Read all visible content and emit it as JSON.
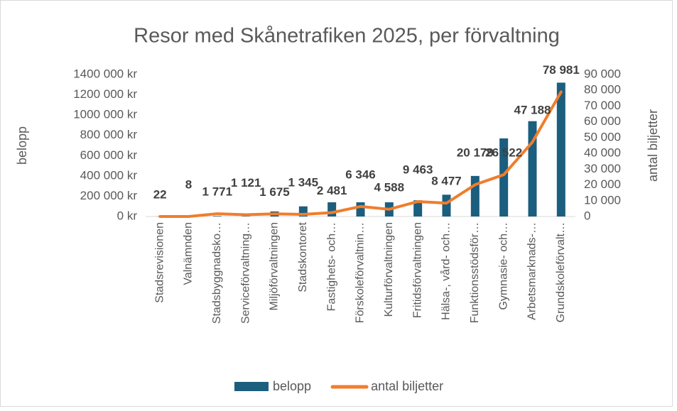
{
  "chart_data": {
    "type": "bar-line",
    "title": "Resor med Skånetrafiken 2025, per förvaltning",
    "y_label": "belopp",
    "y2_label": "antal biljetter",
    "categories": [
      "Stadsrevisionen",
      "Valnämnden",
      "Stadsbyggnadsko…",
      "Serviceförvaltning…",
      "Miljöförvaltningen",
      "Stadskontoret",
      "Fastighets- och…",
      "Förskoleförvaltnin…",
      "Kulturförvaltningen",
      "Fritidsförvaltningen",
      "Hälsa-, vård- och…",
      "Funktionsstödsför…",
      "Gymnasie- och…",
      "Arbetsmarknads-…",
      "Grundskoleförvalt…"
    ],
    "series": [
      {
        "name": "belopp",
        "color": "#1b5e7e",
        "kind": "bar",
        "values": [
          1000,
          500,
          5000,
          3000,
          50000,
          100000,
          140000,
          140000,
          140000,
          160000,
          215000,
          400000,
          770000,
          940000,
          1320000
        ]
      },
      {
        "name": "antal biljetter",
        "color": "#f07d2c",
        "kind": "line",
        "axis": "y2",
        "values": [
          22,
          8,
          1771,
          1121,
          1675,
          1345,
          2481,
          6346,
          4588,
          9463,
          8477,
          20179,
          26522,
          47188,
          78981
        ],
        "value_labels": [
          "22",
          "8",
          "1 771",
          "1 121",
          "1 675",
          "1 345",
          "2 481",
          "6 346",
          "4 588",
          "9 463",
          "8 477",
          "20 179",
          "26 522",
          "47 188",
          "78 981"
        ]
      }
    ],
    "ylim": [
      0,
      1400000
    ],
    "yticks": [
      {
        "value": 0,
        "label": "0 kr"
      },
      {
        "value": 200000,
        "label": "200 000 kr"
      },
      {
        "value": 400000,
        "label": "400 000 kr"
      },
      {
        "value": 600000,
        "label": "600 000 kr"
      },
      {
        "value": 800000,
        "label": "800 000 kr"
      },
      {
        "value": 1000000,
        "label": "1000 000 kr"
      },
      {
        "value": 1200000,
        "label": "1200 000 kr"
      },
      {
        "value": 1400000,
        "label": "1400 000 kr"
      }
    ],
    "y2lim": [
      0,
      90000
    ],
    "y2ticks": [
      0,
      {
        "value": 10000,
        "label": "10 000"
      },
      {
        "value": 20000,
        "label": "20 000"
      },
      {
        "value": 30000,
        "label": "30 000"
      },
      {
        "value": 40000,
        "label": "40 000"
      },
      {
        "value": 50000,
        "label": "50 000"
      },
      {
        "value": 60000,
        "label": "60 000"
      },
      {
        "value": 70000,
        "label": "70 000"
      },
      {
        "value": 80000,
        "label": "80 000"
      },
      {
        "value": 90000,
        "label": "90 000"
      }
    ],
    "legend": "bottom"
  }
}
